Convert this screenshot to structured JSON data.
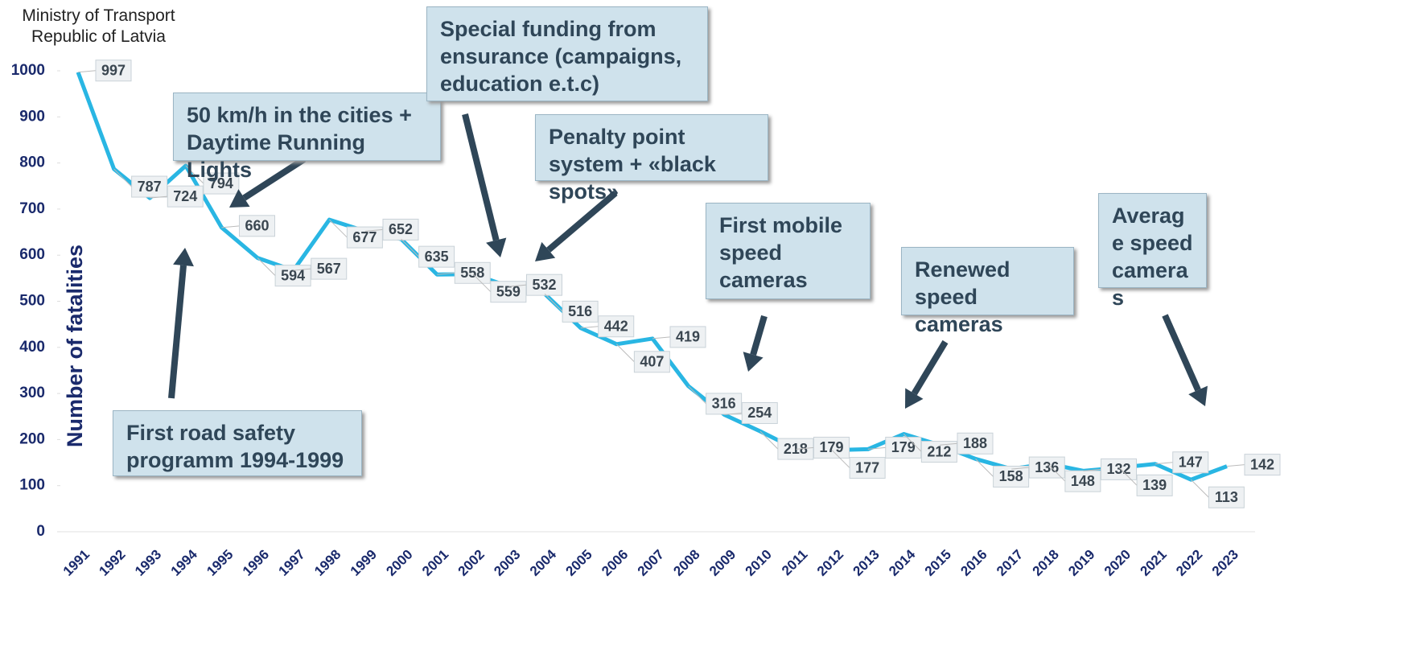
{
  "header": {
    "lines": [
      "Ministry of Transport",
      "Republic of Latvia"
    ]
  },
  "chart_data": {
    "type": "line",
    "y_label": "Number of fatalities",
    "categories": [
      "1991",
      "1992",
      "1993",
      "1994",
      "1995",
      "1996",
      "1997",
      "1998",
      "1999",
      "2000",
      "2001",
      "2002",
      "2003",
      "2004",
      "2005",
      "2006",
      "2007",
      "2008",
      "2009",
      "2010",
      "2011",
      "2012",
      "2013",
      "2014",
      "2015",
      "2016",
      "2017",
      "2018",
      "2019",
      "2020",
      "2021",
      "2022",
      "2023"
    ],
    "series": [
      {
        "name": "Fatalities",
        "color": "#29b6e3",
        "values": [
          997,
          787,
          724,
          794,
          660,
          594,
          567,
          677,
          652,
          635,
          558,
          559,
          532,
          516,
          442,
          407,
          419,
          316,
          254,
          218,
          179,
          177,
          179,
          212,
          188,
          158,
          136,
          148,
          132,
          139,
          147,
          113,
          142
        ]
      }
    ],
    "ylim": [
      0,
      1000
    ],
    "yticks": [
      0,
      100,
      200,
      300,
      400,
      500,
      600,
      700,
      800,
      900,
      1000
    ],
    "annotations": [
      "50 km/h in the cities + Daytime Running Lights",
      "Special funding from ensurance (campaigns, education e.t.c)",
      "Penalty point system + «black spots»",
      "First mobile speed cameras",
      "Renewed speed cameras",
      "Average speed cameras",
      "First road safety programm 1994-1999"
    ]
  }
}
